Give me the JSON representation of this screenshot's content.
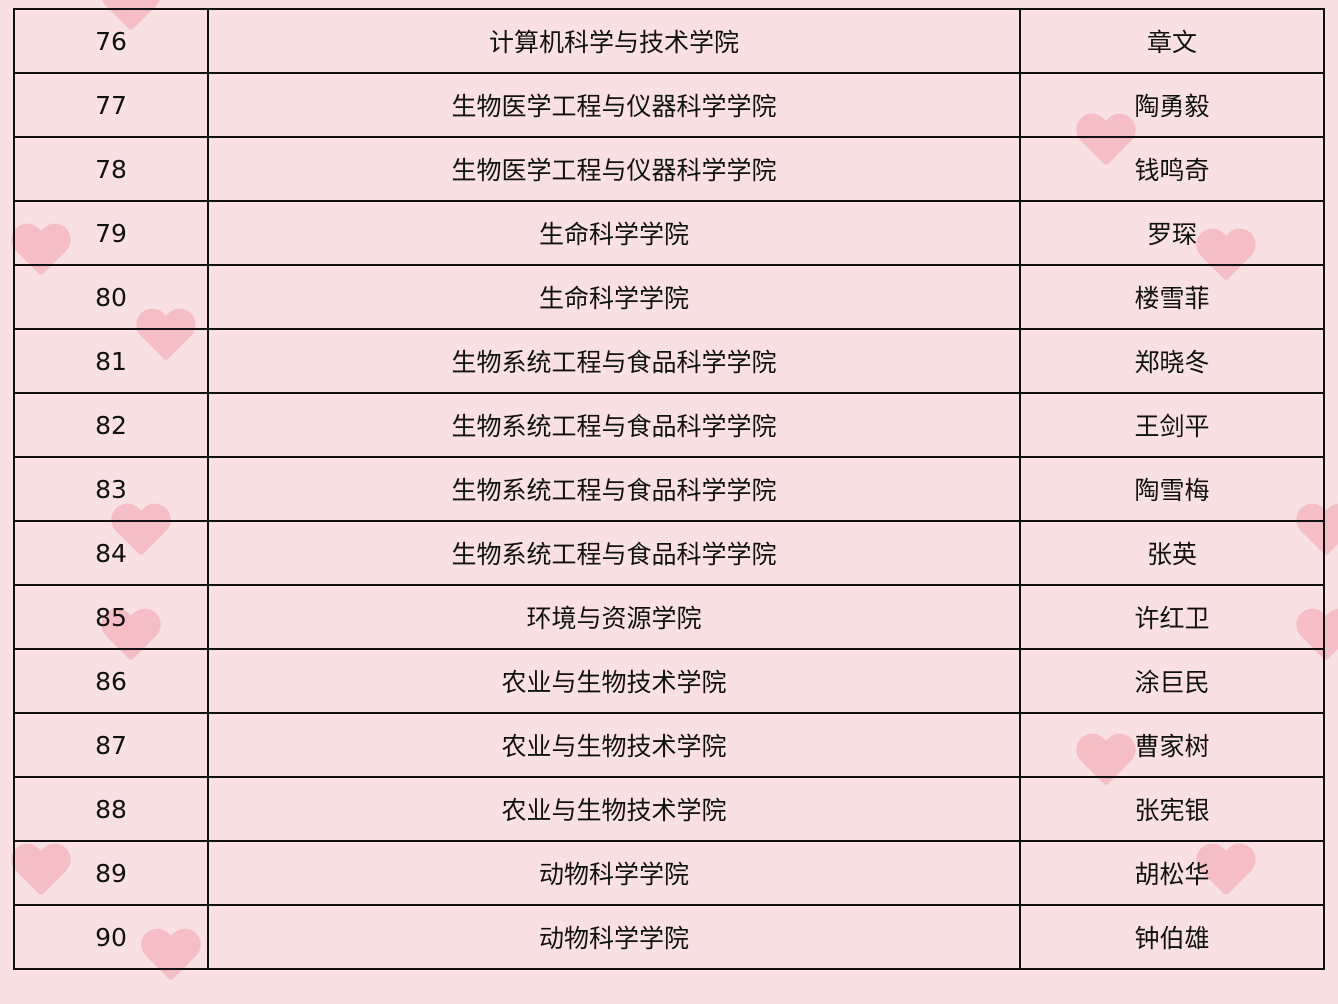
{
  "rows": [
    {
      "no": "76",
      "college": "计算机科学与技术学院",
      "name": "章文"
    },
    {
      "no": "77",
      "college": "生物医学工程与仪器科学学院",
      "name": "陶勇毅"
    },
    {
      "no": "78",
      "college": "生物医学工程与仪器科学学院",
      "name": "钱鸣奇"
    },
    {
      "no": "79",
      "college": "生命科学学院",
      "name": "罗琛"
    },
    {
      "no": "80",
      "college": "生命科学学院",
      "name": "楼雪菲"
    },
    {
      "no": "81",
      "college": "生物系统工程与食品科学学院",
      "name": "郑晓冬"
    },
    {
      "no": "82",
      "college": "生物系统工程与食品科学学院",
      "name": "王剑平"
    },
    {
      "no": "83",
      "college": "生物系统工程与食品科学学院",
      "name": "陶雪梅"
    },
    {
      "no": "84",
      "college": "生物系统工程与食品科学学院",
      "name": "张英"
    },
    {
      "no": "85",
      "college": "环境与资源学院",
      "name": "许红卫"
    },
    {
      "no": "86",
      "college": "农业与生物技术学院",
      "name": "涂巨民"
    },
    {
      "no": "87",
      "college": "农业与生物技术学院",
      "name": "曹家树"
    },
    {
      "no": "88",
      "college": "农业与生物技术学院",
      "name": "张宪银"
    },
    {
      "no": "89",
      "college": "动物科学学院",
      "name": "胡松华"
    },
    {
      "no": "90",
      "college": "动物科学学院",
      "name": "钟伯雄"
    }
  ],
  "colors": {
    "background": "#f8e0e3",
    "heart": "#f4a3ad",
    "border": "#111111"
  }
}
